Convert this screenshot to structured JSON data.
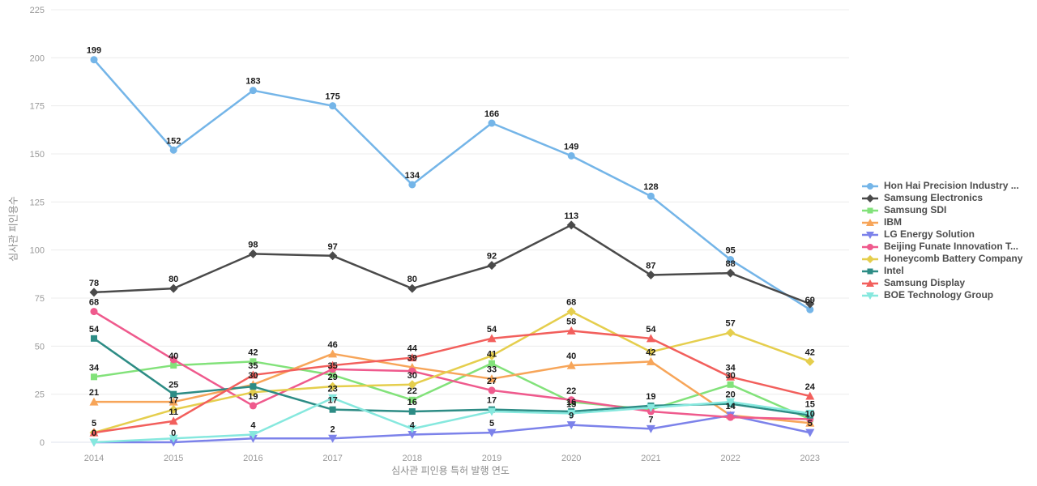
{
  "chart_data": {
    "type": "line",
    "x_axis_title": "심사관 피인용 특허 발행 연도",
    "y_axis_title": "심사관 피인용수",
    "categories": [
      "2014",
      "2015",
      "2016",
      "2017",
      "2018",
      "2019",
      "2020",
      "2021",
      "2022",
      "2023"
    ],
    "y_ticks": [
      0,
      25,
      50,
      75,
      100,
      125,
      150,
      175,
      200,
      225
    ],
    "ylim": [
      0,
      225
    ],
    "grid": "horizontal",
    "legend_position": "right",
    "series": [
      {
        "name": "Hon Hai Precision Industry ...",
        "color": "#74b5e8",
        "marker": "circle",
        "values": [
          199,
          152,
          183,
          175,
          134,
          166,
          149,
          128,
          95,
          69
        ],
        "show_labels": [
          1,
          1,
          1,
          1,
          1,
          1,
          1,
          1,
          1,
          1
        ]
      },
      {
        "name": "Samsung Electronics",
        "color": "#4a4a4a",
        "marker": "diamond",
        "values": [
          78,
          80,
          98,
          97,
          80,
          92,
          113,
          87,
          88,
          72
        ],
        "show_labels": [
          1,
          1,
          1,
          1,
          1,
          1,
          1,
          1,
          1,
          0
        ]
      },
      {
        "name": "Samsung SDI",
        "color": "#82e27a",
        "marker": "square",
        "values": [
          34,
          40,
          42,
          35,
          22,
          41,
          21,
          17,
          30,
          12
        ],
        "show_labels": [
          1,
          1,
          1,
          1,
          1,
          1,
          0,
          0,
          1,
          0
        ]
      },
      {
        "name": "IBM",
        "color": "#f7a559",
        "marker": "triangle-up",
        "values": [
          21,
          21,
          30,
          46,
          39,
          33,
          40,
          42,
          14,
          10
        ],
        "show_labels": [
          1,
          0,
          1,
          1,
          1,
          1,
          1,
          1,
          1,
          1
        ]
      },
      {
        "name": "LG Energy Solution",
        "color": "#7c82ea",
        "marker": "triangle-down",
        "values": [
          0,
          0,
          2,
          2,
          4,
          5,
          9,
          7,
          14,
          5
        ],
        "show_labels": [
          1,
          1,
          0,
          1,
          1,
          1,
          1,
          1,
          0,
          1
        ]
      },
      {
        "name": "Beijing Funate Innovation T...",
        "color": "#ef5a8d",
        "marker": "circle",
        "values": [
          68,
          43,
          19,
          38,
          37,
          27,
          22,
          16,
          13,
          12
        ],
        "show_labels": [
          1,
          0,
          1,
          0,
          0,
          1,
          1,
          0,
          0,
          0
        ]
      },
      {
        "name": "Honeycomb Battery Company",
        "color": "#e5ce4d",
        "marker": "diamond",
        "values": [
          5,
          17,
          26,
          29,
          30,
          45,
          68,
          47,
          57,
          42
        ],
        "show_labels": [
          0,
          1,
          0,
          1,
          1,
          0,
          1,
          0,
          1,
          1
        ]
      },
      {
        "name": "Intel",
        "color": "#2d8c85",
        "marker": "square",
        "values": [
          54,
          25,
          29,
          17,
          16,
          17,
          16,
          19,
          20,
          14
        ],
        "show_labels": [
          1,
          1,
          0,
          1,
          1,
          1,
          1,
          1,
          1,
          0
        ]
      },
      {
        "name": "Samsung Display",
        "color": "#f25f5c",
        "marker": "triangle-up",
        "values": [
          5,
          11,
          35,
          40,
          44,
          54,
          58,
          54,
          34,
          24
        ],
        "show_labels": [
          1,
          1,
          1,
          0,
          1,
          1,
          1,
          1,
          1,
          1
        ]
      },
      {
        "name": "BOE Technology Group",
        "color": "#86e8de",
        "marker": "triangle-down",
        "values": [
          0,
          2,
          4,
          23,
          7,
          16,
          15,
          18,
          21,
          15
        ],
        "show_labels": [
          0,
          0,
          1,
          1,
          0,
          0,
          1,
          0,
          0,
          1
        ]
      }
    ]
  }
}
